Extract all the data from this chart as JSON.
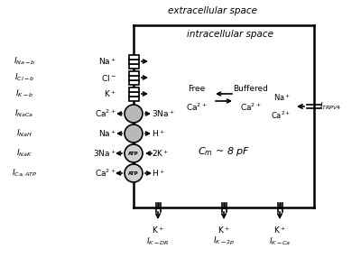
{
  "bg_color": "#ffffff",
  "line_color": "#000000",
  "extracellular_label": "extracellular space",
  "intracellular_label": "intracellular space",
  "cm_label": "$C_m$ ~ 8 pF",
  "current_labels_left": [
    "$I_{Na-b}$",
    "$I_{Cl-b}$",
    "$I_{K-b}$",
    "$I_{NaCa}$",
    "$I_{NaH}$",
    "$I_{NaK}$",
    "$I_{Ca,ATP}$"
  ],
  "ion_labels_left": [
    "Na$^+$",
    "Cl$^-$",
    "K$^+$",
    "Ca$^{2+}$",
    "Na$^+$",
    "3Na$^+$",
    "Ca$^{2+}$"
  ],
  "ion_labels_right": [
    "",
    "",
    "",
    "3Na$^+$",
    "H$^+$",
    "2K$^+$",
    "H$^+$"
  ],
  "bottom_current_labels": [
    "$I_{K-DR}$",
    "$I_{K-2p}$",
    "$I_{K-Ca}$"
  ],
  "trpv4_current_label": "$I_{TRPV4}$"
}
